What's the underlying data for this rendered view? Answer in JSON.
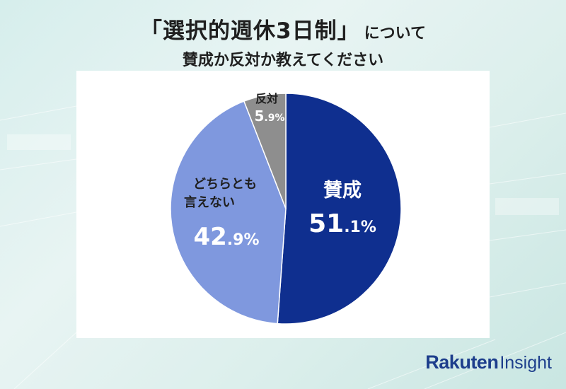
{
  "title": {
    "main": "「選択的週休3日制」",
    "suffix": "について",
    "sub": "賛成か反対か教えてください"
  },
  "chart_data": {
    "type": "pie",
    "title": "「選択的週休3日制」について賛成か反対か教えてください",
    "slices": [
      {
        "label": "賛成",
        "value": 51.1,
        "value_text": "51.1%",
        "color": "#0f2f8f"
      },
      {
        "label": "どちらとも言えない",
        "value": 42.9,
        "value_text": "42.9%",
        "color": "#7f98de"
      },
      {
        "label": "反対",
        "value": 5.9,
        "value_text": "5.9%",
        "color": "#8e8e8e"
      }
    ]
  },
  "brand": {
    "name_bold": "Rakuten",
    "name_regular": "Insight",
    "color": "#1d3e8c"
  }
}
